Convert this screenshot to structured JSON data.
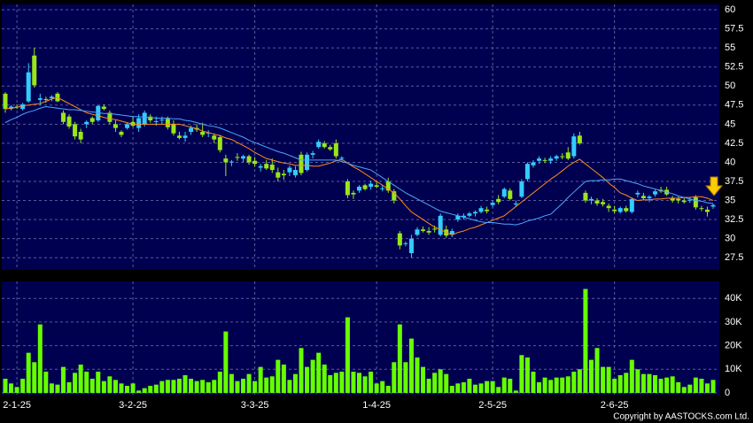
{
  "chart_data": [
    {
      "type": "candlestick",
      "categories": [
        null,
        null,
        "2-1-25",
        null,
        null,
        null,
        null,
        null,
        null,
        null,
        null,
        null,
        null,
        null,
        null,
        null,
        null,
        null,
        null,
        null,
        null,
        null,
        "3-2-25",
        null,
        null,
        null,
        null,
        null,
        null,
        null,
        null,
        null,
        null,
        null,
        null,
        null,
        null,
        null,
        null,
        null,
        null,
        null,
        null,
        "3-3-25",
        null,
        null,
        null,
        null,
        null,
        null,
        null,
        null,
        null,
        null,
        null,
        null,
        null,
        null,
        null,
        null,
        null,
        null,
        null,
        null,
        "1-4-25",
        null,
        null,
        null,
        null,
        null,
        null,
        null,
        null,
        null,
        null,
        null,
        null,
        null,
        null,
        null,
        null,
        null,
        null,
        null,
        "2-5-25",
        null,
        null,
        null,
        null,
        null,
        null,
        null,
        null,
        null,
        null,
        null,
        null,
        null,
        null,
        null,
        null,
        null,
        null,
        null,
        null,
        "2-6-25",
        null,
        null,
        null,
        null,
        null,
        null,
        null,
        null,
        null,
        null,
        null,
        null,
        null,
        null,
        null,
        null,
        null
      ],
      "open": [
        49,
        47,
        47.3,
        47,
        48,
        54,
        48.2,
        48.3,
        48.4,
        49,
        46.5,
        46,
        45,
        44,
        45,
        45.8,
        45.5,
        47.3,
        46.5,
        45,
        44,
        44.5,
        45.3,
        44.5,
        45,
        46,
        45.3,
        45.5,
        45.7,
        45,
        43.5,
        43.2,
        44,
        44.5,
        44,
        43.8,
        43.5,
        43.3,
        40.5,
        40,
        40.7,
        40.5,
        40.8,
        40.2,
        39.3,
        39.8,
        39.7,
        38.7,
        38.5,
        38.7,
        38.3,
        41,
        39,
        41,
        42,
        42.5,
        42,
        42.5,
        40.5,
        37.5,
        36,
        36.3,
        37,
        36.8,
        37,
        36.5,
        37.5,
        36.2,
        30.7,
        29.3,
        28.1,
        30.5,
        31.2,
        31,
        31.3,
        30.5,
        31.2,
        30.5,
        32.5,
        32.8,
        33,
        33.3,
        33.5,
        33.8,
        34.4,
        35.2,
        35.5,
        36.3,
        34.5,
        35.5,
        37.8,
        39.6,
        40.2,
        40.3,
        40.2,
        40.5,
        40.8,
        41.3,
        40.8,
        43.5,
        36,
        35,
        35,
        34.8,
        34.3,
        33.8,
        33.5,
        34,
        33.5,
        35.8,
        35.6,
        35.3,
        35.8,
        36.4,
        36.4,
        35.3,
        35.2,
        35,
        35,
        35.4,
        34,
        33.8,
        34.2
      ],
      "high": [
        49.2,
        47.5,
        47.6,
        47.8,
        53,
        55,
        49,
        48.6,
        48.8,
        49.2,
        46.8,
        46.3,
        45.3,
        44.4,
        45.5,
        46,
        47.5,
        47.6,
        46.8,
        45.5,
        44.2,
        45.2,
        46,
        46.3,
        46.8,
        46.3,
        46,
        46,
        46,
        45.5,
        44,
        44,
        44.8,
        45,
        45.2,
        44.2,
        43.8,
        43.6,
        41,
        40.3,
        41.2,
        41,
        41,
        40.7,
        39.8,
        40.3,
        40.5,
        39.3,
        39,
        39.6,
        39.5,
        41.4,
        41.3,
        41.5,
        43,
        42.8,
        42.3,
        43,
        40.8,
        37.8,
        36.3,
        37,
        37.2,
        37.6,
        37.5,
        37,
        38,
        36.5,
        31,
        29.6,
        30.5,
        31.5,
        31.6,
        31.5,
        31.7,
        33.3,
        31.7,
        31.3,
        33.3,
        33.3,
        33.5,
        33.7,
        34.3,
        34.2,
        35,
        35.7,
        36.7,
        36.6,
        35,
        37.8,
        40,
        40.3,
        40.8,
        40.6,
        40.8,
        41,
        41.2,
        42,
        43.8,
        44,
        36.3,
        35.5,
        35.3,
        35.2,
        34.6,
        34.3,
        34.2,
        34.3,
        35.4,
        36.3,
        36,
        35.7,
        36.4,
        36.8,
        36.8,
        35.6,
        35.5,
        35.3,
        35.4,
        35.7,
        34.3,
        34.2,
        34.6
      ],
      "low": [
        46.5,
        46.8,
        47,
        46.8,
        47.8,
        49.8,
        47.5,
        47.8,
        48,
        47.9,
        45,
        44.4,
        43,
        42.5,
        44.5,
        45,
        45.3,
        46.8,
        45,
        44,
        43.3,
        44.3,
        44.6,
        44,
        44.7,
        45.2,
        44.8,
        45,
        44.3,
        43.5,
        43,
        42.7,
        43.6,
        44,
        43.3,
        43.3,
        42.5,
        41.3,
        38.2,
        39.5,
        40.2,
        40,
        39.7,
        39.4,
        38.8,
        39,
        38.6,
        37.5,
        37.7,
        38.2,
        38,
        38.3,
        38.8,
        40.5,
        41.8,
        41.8,
        41.5,
        40.5,
        40.2,
        35.3,
        35.2,
        36,
        36.3,
        36.4,
        36.6,
        36.2,
        36,
        34.6,
        28.6,
        29,
        27.5,
        30.3,
        30.8,
        30.5,
        30.8,
        30.3,
        30.1,
        30.2,
        32.2,
        32.5,
        32.8,
        32.9,
        33.3,
        33.3,
        34.1,
        34.5,
        35.3,
        35,
        34.2,
        35.3,
        37.5,
        39.3,
        39.8,
        39.9,
        39.8,
        40.2,
        40.4,
        40.3,
        40.5,
        42.3,
        34.7,
        34.5,
        34.3,
        34.2,
        33.5,
        33.3,
        33.3,
        33.4,
        33.3,
        35.4,
        35,
        34.8,
        35.5,
        36,
        35.6,
        34.7,
        34.6,
        34.6,
        34.7,
        33.8,
        33.6,
        32.9,
        33.9
      ],
      "close": [
        47,
        47.3,
        47.2,
        47.6,
        51.8,
        50.1,
        48.4,
        48.2,
        48.6,
        48,
        45.3,
        44.7,
        43.4,
        43,
        45.3,
        45.3,
        47.4,
        47,
        45.3,
        44.5,
        43.6,
        45,
        44.8,
        45.8,
        46.5,
        45.5,
        45.4,
        45.6,
        44.6,
        43.8,
        43.2,
        43.5,
        44.5,
        44.3,
        43.6,
        43.9,
        43,
        41.6,
        40,
        40.1,
        40.6,
        40.8,
        40,
        39.8,
        39.5,
        39.2,
        39,
        38,
        38.3,
        39.3,
        39,
        38.6,
        41,
        41.2,
        42.7,
        42,
        41.7,
        40.8,
        40.6,
        35.7,
        35.8,
        36.8,
        36.5,
        37.2,
        36.8,
        36.6,
        36.3,
        35,
        29.1,
        29.4,
        30,
        31.2,
        31,
        30.8,
        31.2,
        33,
        30.4,
        31,
        33,
        33,
        33.3,
        33.5,
        34,
        33.6,
        34.7,
        34.8,
        36.5,
        35.2,
        34.6,
        37.5,
        39.8,
        40,
        40.5,
        40.2,
        40.5,
        40.8,
        40.7,
        40.5,
        43.4,
        42.5,
        35,
        35.2,
        34.6,
        34.5,
        34,
        33.6,
        34,
        33.6,
        35.2,
        36,
        35.3,
        35.5,
        36.2,
        36.2,
        35.8,
        35,
        35,
        34.8,
        35.1,
        34.1,
        33.9,
        33.5,
        34.4
      ],
      "up_color": "#33ccff",
      "down_color": "#99e61a",
      "lines": [
        {
          "color": "#ff8c1a",
          "values": [
            47,
            47.1,
            47.2,
            47.4,
            47.5,
            47.6,
            47.7,
            48,
            48.3,
            48.5,
            48.1,
            47.7,
            47.3,
            46.9,
            46.5,
            46.3,
            46.1,
            45.9,
            45.7,
            45.6,
            45.4,
            45.2,
            45,
            45,
            45,
            45,
            45,
            45,
            45,
            45,
            45,
            44.8,
            44.6,
            44.4,
            44.1,
            43.9,
            43.7,
            43.5,
            43.2,
            43,
            42.6,
            42.2,
            41.8,
            41.3,
            40.9,
            40.5,
            40.3,
            40.1,
            39.9,
            39.8,
            39.6,
            39.6,
            39.6,
            39.5,
            39.5,
            39.7,
            39.9,
            40.2,
            40.4,
            39.9,
            39.4,
            39,
            38.5,
            38,
            37.5,
            37,
            36.5,
            36,
            35.2,
            34.3,
            33.5,
            33,
            32.5,
            32,
            31.5,
            31.2,
            30.8,
            30.5,
            30.8,
            31,
            31.3,
            31.5,
            31.8,
            32.1,
            32.4,
            32.7,
            33,
            33.6,
            34.2,
            34.8,
            35.4,
            36,
            36.6,
            37.2,
            37.8,
            38.3,
            38.9,
            39.5,
            40,
            40.4,
            39.8,
            39.2,
            38.6,
            38,
            37.3,
            36.7,
            36,
            35.7,
            35.3,
            35,
            35.1,
            35.1,
            35.2,
            35.2,
            35.3,
            35.3,
            35.3,
            35.4,
            35.4,
            35.5,
            35.5,
            35.3,
            35
          ]
        },
        {
          "color": "#4da6ff",
          "values": [
            45.2,
            45.6,
            45.9,
            46.3,
            46.6,
            46.8,
            47.1,
            47.3,
            47.2,
            47.1,
            47,
            46.9,
            46.9,
            46.8,
            46.7,
            46.6,
            46.5,
            46.4,
            46.4,
            46.3,
            46.2,
            46.1,
            46,
            46,
            45.9,
            45.9,
            45.8,
            45.8,
            45.8,
            45.7,
            45.7,
            45.5,
            45.4,
            45.2,
            45,
            44.8,
            44.7,
            44.5,
            44.2,
            43.9,
            43.6,
            43.3,
            42.9,
            42.6,
            42.3,
            42,
            41.7,
            41.4,
            41.2,
            40.9,
            40.6,
            40.3,
            40.3,
            40.3,
            40.3,
            40.3,
            40.3,
            40.3,
            40.1,
            39.9,
            39.6,
            39.4,
            39.2,
            39,
            38.5,
            38,
            37.5,
            37,
            36.5,
            36,
            35.6,
            35.2,
            34.8,
            34.4,
            34,
            33.6,
            33.4,
            33.2,
            33,
            32.8,
            32.6,
            32.4,
            32.2,
            32.1,
            32.1,
            32,
            31.9,
            31.9,
            31.8,
            32,
            32.3,
            32.5,
            32.7,
            33,
            33.2,
            33.9,
            34.6,
            35.4,
            36.1,
            36.8,
            37.5,
            37.6,
            37.6,
            37.7,
            37.7,
            37.8,
            37.8,
            37.6,
            37.4,
            37.2,
            36.9,
            36.7,
            36.5,
            36.3,
            36.1,
            35.9,
            35.6,
            35.4,
            35.2,
            35,
            34.9,
            34.7,
            34.6
          ]
        }
      ],
      "ylim": [
        25.9,
        60.7
      ],
      "yticks": [
        27.5,
        30,
        32.5,
        35,
        37.5,
        40,
        42.5,
        45,
        47.5,
        50,
        52.5,
        55,
        57.5,
        60
      ],
      "grid": true
    },
    {
      "type": "bar",
      "values": [
        6000,
        4000,
        2500,
        6000,
        17000,
        13000,
        29000,
        9000,
        4000,
        3500,
        11000,
        4500,
        8500,
        12000,
        9000,
        6000,
        9000,
        5000,
        7000,
        5500,
        4000,
        3000,
        4000,
        1000,
        2000,
        3000,
        3500,
        5000,
        5500,
        5500,
        6000,
        7500,
        6000,
        5000,
        5500,
        4500,
        5500,
        9000,
        26000,
        8000,
        5000,
        6000,
        8000,
        5000,
        11000,
        6500,
        7000,
        14000,
        12000,
        5500,
        8000,
        19000,
        11000,
        14000,
        17000,
        12000,
        7500,
        8500,
        9000,
        32000,
        9000,
        8500,
        7000,
        9000,
        4000,
        5000,
        3000,
        13000,
        29000,
        13000,
        23000,
        15000,
        11000,
        6000,
        8500,
        10000,
        8000,
        3000,
        4000,
        4500,
        6000,
        3500,
        4000,
        5000,
        5000,
        2500,
        6500,
        6000,
        1000,
        16000,
        15000,
        9000,
        4500,
        6500,
        5500,
        6500,
        6500,
        7000,
        9000,
        10000,
        44000,
        14000,
        19000,
        11000,
        11000,
        6000,
        7500,
        8500,
        14000,
        10000,
        8000,
        8000,
        7500,
        6000,
        6500,
        7000,
        4500,
        2500,
        3500,
        6500,
        6000,
        4000,
        5500
      ],
      "color": "#66ff00",
      "ylim": [
        -750,
        47200
      ],
      "yticks": [
        0,
        {
          "value": 10000,
          "label": "10K"
        },
        {
          "value": 20000,
          "label": "20K"
        },
        {
          "value": 30000,
          "label": "30K"
        },
        {
          "value": 40000,
          "label": "40K"
        }
      ],
      "grid": true
    }
  ],
  "copyright": "Copyright by AASTOCKS.com Ltd."
}
